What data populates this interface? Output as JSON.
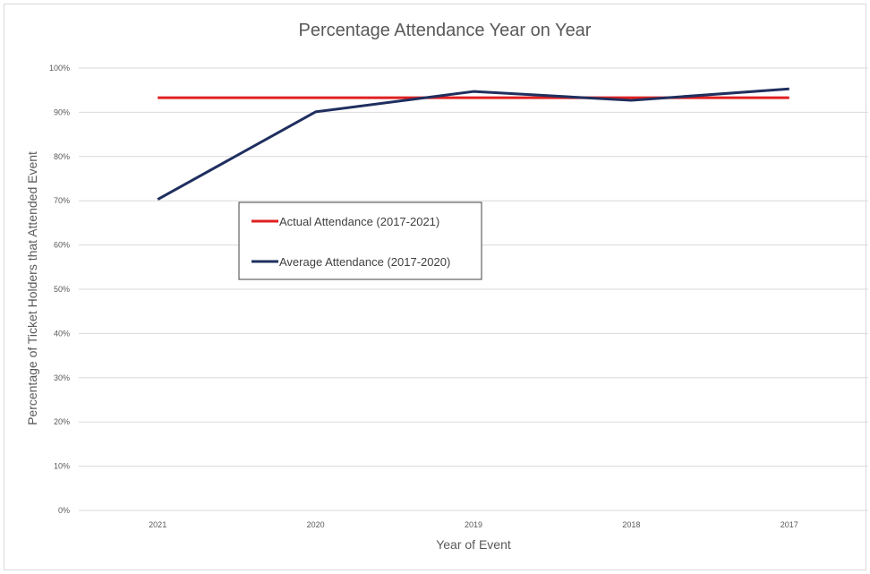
{
  "chart_data": {
    "type": "line",
    "title": "Percentage Attendance Year on Year",
    "xlabel": "Year of Event",
    "ylabel": "Percentage of Ticket Holders that Attended Event",
    "categories": [
      "2021",
      "2020",
      "2019",
      "2018",
      "2017"
    ],
    "y_ticks": [
      "0%",
      "10%",
      "20%",
      "30%",
      "40%",
      "50%",
      "60%",
      "70%",
      "80%",
      "90%",
      "100%"
    ],
    "ylim": [
      0,
      100
    ],
    "grid": true,
    "legend_position": "center-left",
    "series": [
      {
        "name": "Actual Attendance (2017-2021)",
        "color": "#e02020",
        "values": [
          93.3,
          93.3,
          93.3,
          93.3,
          93.3
        ]
      },
      {
        "name": "Average Attendance (2017-2020)",
        "color": "#1f2f5f",
        "values": [
          70.3,
          90.1,
          94.7,
          92.7,
          95.3
        ]
      }
    ]
  }
}
